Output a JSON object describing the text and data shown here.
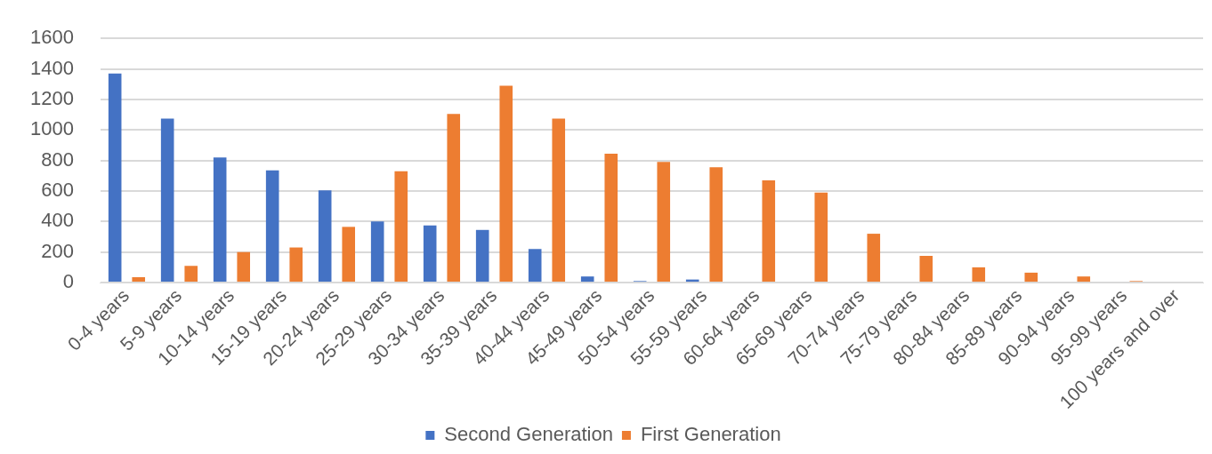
{
  "chart_data": {
    "type": "bar",
    "categories": [
      "0-4 years",
      "5-9 years",
      "10-14 years",
      "15-19 years",
      "20-24 years",
      "25-29 years",
      "30-34 years",
      "35-39 years",
      "40-44 years",
      "45-49 years",
      "50-54 years",
      "55-59 years",
      "60-64 years",
      "65-69 years",
      "70-74 years",
      "75-79 years",
      "80-84 years",
      "85-89 years",
      "90-94 years",
      "95-99 years",
      "100 years and over"
    ],
    "series": [
      {
        "name": "Second Generation",
        "color": "#4472c4",
        "values": [
          1370,
          1075,
          820,
          735,
          605,
          400,
          375,
          345,
          220,
          40,
          10,
          20,
          0,
          0,
          0,
          0,
          0,
          0,
          0,
          0,
          0
        ]
      },
      {
        "name": "First Generation",
        "color": "#ed7d31",
        "values": [
          35,
          110,
          200,
          230,
          365,
          730,
          1105,
          1290,
          1075,
          845,
          790,
          755,
          670,
          590,
          320,
          175,
          100,
          65,
          40,
          10,
          0
        ]
      }
    ],
    "ylim": [
      0,
      1600
    ],
    "yticks": [
      0,
      200,
      400,
      600,
      800,
      1000,
      1200,
      1400,
      1600
    ],
    "grid": "y",
    "legend": "bottom"
  }
}
